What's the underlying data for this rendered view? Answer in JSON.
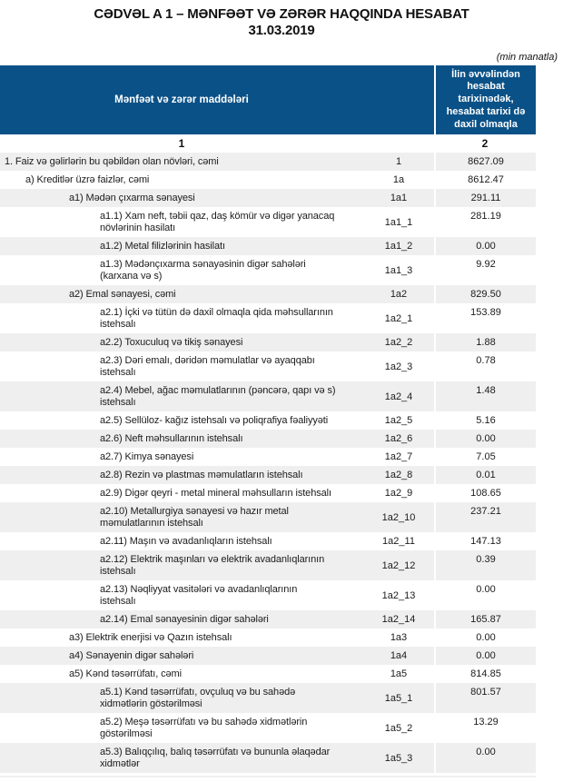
{
  "title": {
    "line1": "CƏDVƏL A 1 – MƏNFƏƏT VƏ ZƏRƏR HAQQINDA HESABAT",
    "line2": "31.03.2019"
  },
  "unit_note": "(min manatla)",
  "colors": {
    "header_blue": "#0a5187",
    "row_stripe": "#efefef"
  },
  "table": {
    "col1_header": "Mənfəət və zərər maddələri",
    "col2_header": "İlin əvvəlindən\nhesabat\ntarixinədək,\nhesabat tarixi də\ndaxil olmaqla",
    "col1_number": "1",
    "col2_number": "2",
    "rows": [
      {
        "label": "1. Faiz və gəlirlərin bu qəbildən olan növləri, cəmi",
        "code": "1",
        "value": "8627.09",
        "indent": 0
      },
      {
        "label": "a) Kreditlər üzrə faizlər, cəmi",
        "code": "1a",
        "value": "8612.47",
        "indent": 1
      },
      {
        "label": "a1) Mədən çıxarma sənayesi",
        "code": "1a1",
        "value": "291.11",
        "indent": 2
      },
      {
        "label": "a1.1) Xam neft, təbii qaz, daş kömür və digər yanacaq\nnövlərinin hasilatı",
        "code": "1a1_1",
        "value": "281.19",
        "indent": 3
      },
      {
        "label": "a1.2) Metal filizlərinin hasilatı",
        "code": "1a1_2",
        "value": "0.00",
        "indent": 3
      },
      {
        "label": "a1.3) Mədənçıxarma sənayəsinin digər sahələri\n(karxana və s)",
        "code": "1a1_3",
        "value": "9.92",
        "indent": 3
      },
      {
        "label": "a2) Emal sənayesi, cəmi",
        "code": "1a2",
        "value": "829.50",
        "indent": 2
      },
      {
        "label": "a2.1) İçki və tütün də daxil olmaqla qida məhsullarının\nistehsalı",
        "code": "1a2_1",
        "value": "153.89",
        "indent": 3
      },
      {
        "label": "a2.2) Toxuculuq və tikiş sənayesi",
        "code": "1a2_2",
        "value": "1.88",
        "indent": 3
      },
      {
        "label": "a2.3) Dəri emalı, dəridən məmulatlar və ayaqqabı\nistehsalı",
        "code": "1a2_3",
        "value": "0.78",
        "indent": 3
      },
      {
        "label": "a2.4) Mebel, ağac məmulatlarının (pəncərə, qapı və s)\nistehsalı",
        "code": "1a2_4",
        "value": "1.48",
        "indent": 3
      },
      {
        "label": "a2.5) Sellüloz- kağız istehsalı və poliqrafiya fəaliyyəti",
        "code": "1a2_5",
        "value": "5.16",
        "indent": 3
      },
      {
        "label": "a2.6) Neft məhsullarının istehsalı",
        "code": "1a2_6",
        "value": "0.00",
        "indent": 3
      },
      {
        "label": "a2.7) Kimya sənayesi",
        "code": "1a2_7",
        "value": "7.05",
        "indent": 3
      },
      {
        "label": "a2.8) Rezin və plastmas məmulatların istehsalı",
        "code": "1a2_8",
        "value": "0.01",
        "indent": 3
      },
      {
        "label": "a2.9) Digər qeyri - metal mineral məhsulların istehsalı",
        "code": "1a2_9",
        "value": "108.65",
        "indent": 3
      },
      {
        "label": "a2.10) Metallurgiya sənayesi və hazır metal\nməmulatlarının istehsalı",
        "code": "1a2_10",
        "value": "237.21",
        "indent": 3
      },
      {
        "label": "a2.11) Maşın və avadanlıqların istehsalı",
        "code": "1a2_11",
        "value": "147.13",
        "indent": 3
      },
      {
        "label": "a2.12) Elektrik maşınları və elektrik avadanlıqlarının\nistehsalı",
        "code": "1a2_12",
        "value": "0.39",
        "indent": 3
      },
      {
        "label": "a2.13) Nəqliyyat vasitələri və avadanlıqlarının\nistehsalı",
        "code": "1a2_13",
        "value": "0.00",
        "indent": 3
      },
      {
        "label": "a2.14) Emal sənayesinin digər sahələri",
        "code": "1a2_14",
        "value": "165.87",
        "indent": 3
      },
      {
        "label": "a3) Elektrik enerjisi və Qazın istehsalı",
        "code": "1a3",
        "value": "0.00",
        "indent": 2
      },
      {
        "label": "a4) Sənayenin digər sahələri",
        "code": "1a4",
        "value": "0.00",
        "indent": 2
      },
      {
        "label": "a5) Kənd təsərrüfatı, cəmi",
        "code": "1a5",
        "value": "814.85",
        "indent": 2
      },
      {
        "label": "a5.1) Kənd təsərrüfatı, ovçuluq və bu sahədə\nxidmətlərin göstərilməsi",
        "code": "1a5_1",
        "value": "801.57",
        "indent": 3
      },
      {
        "label": "a5.2) Meşə təsərrüfatı və bu sahədə xidmətlərin\ngöstərilməsi",
        "code": "1a5_2",
        "value": "13.29",
        "indent": 3
      },
      {
        "label": "a5.3) Balıqçılıq, balıq təsərrüfatı və bununla əlaqədar\nxidmətlər",
        "code": "1a5_3",
        "value": "0.00",
        "indent": 3
      }
    ]
  }
}
